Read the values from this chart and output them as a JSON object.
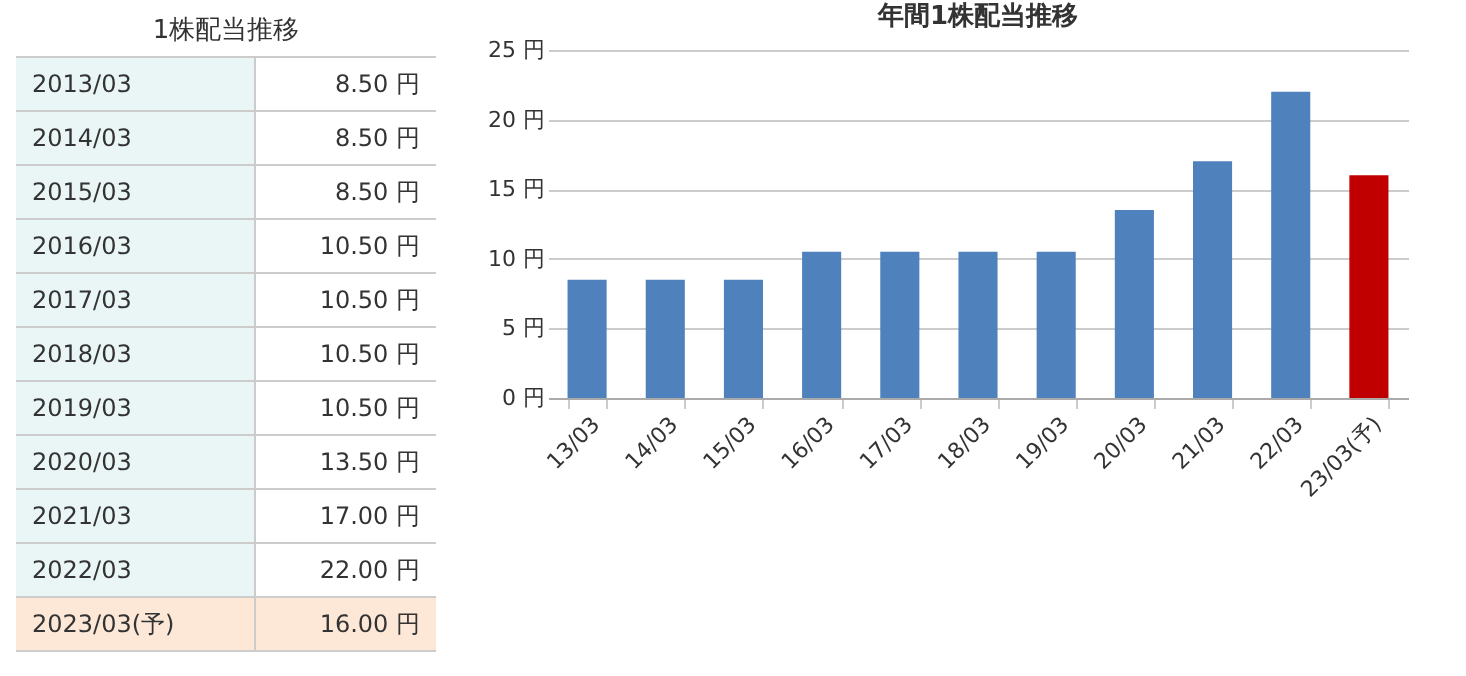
{
  "chart_data": [
    {
      "type": "other",
      "title": "1株配当推移",
      "categories": [
        "2013/03",
        "2014/03",
        "2015/03",
        "2016/03",
        "2017/03",
        "2018/03",
        "2019/03",
        "2020/03",
        "2021/03",
        "2022/03",
        "2023/03(予)"
      ],
      "value_labels": [
        "8.50 円",
        "8.50 円",
        "8.50 円",
        "10.50 円",
        "10.50 円",
        "10.50 円",
        "10.50 円",
        "13.50 円",
        "17.00 円",
        "22.00 円",
        "16.00 円"
      ]
    },
    {
      "type": "bar",
      "title": "年間1株配当推移",
      "categories": [
        "13/03",
        "14/03",
        "15/03",
        "16/03",
        "17/03",
        "18/03",
        "19/03",
        "20/03",
        "21/03",
        "22/03",
        "23/03(予)"
      ],
      "values": [
        8.5,
        8.5,
        8.5,
        10.5,
        10.5,
        10.5,
        10.5,
        13.5,
        17,
        22,
        16
      ],
      "colors": [
        "#4f81bd",
        "#4f81bd",
        "#4f81bd",
        "#4f81bd",
        "#4f81bd",
        "#4f81bd",
        "#4f81bd",
        "#4f81bd",
        "#4f81bd",
        "#4f81bd",
        "#c00000"
      ],
      "ylim": [
        0,
        25
      ],
      "yticks": [
        {
          "value": 0,
          "label": "0 円"
        },
        {
          "value": 5,
          "label": "5 円"
        },
        {
          "value": 10,
          "label": "10 円"
        },
        {
          "value": 15,
          "label": "15 円"
        },
        {
          "value": 20,
          "label": "20 円"
        },
        {
          "value": 25,
          "label": "25 円"
        }
      ],
      "grid": "y"
    }
  ]
}
